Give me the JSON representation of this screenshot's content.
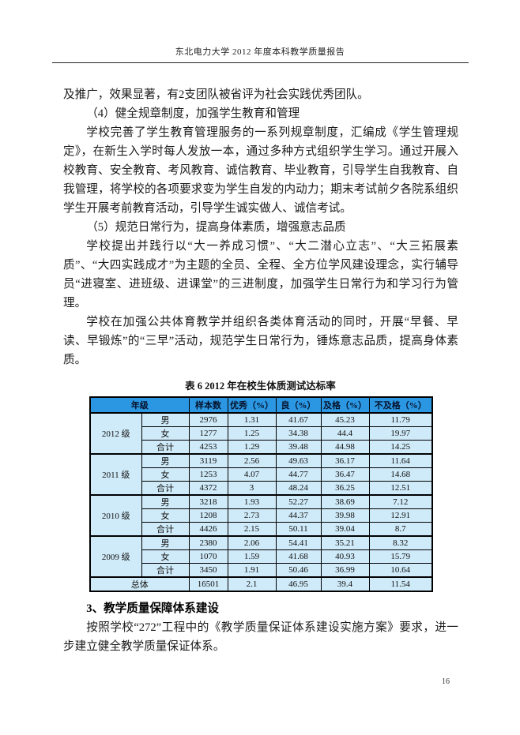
{
  "header": {
    "title": "东北电力大学 2012 年度本科教学质量报告"
  },
  "body": {
    "p_continuation": "及推广，效果显著，有2支团队被省评为社会实践优秀团队。",
    "heading_4": "（4）健全规章制度，加强学生教育和管理",
    "p_rules": "学校完善了学生教育管理服务的一系列规章制度，汇编成《学生管理规定》，在新生入学时每人发放一本，通过多种方式组织学生学习。通过开展入校教育、安全教育、考风教育、诚信教育、毕业教育，引导学生自我教育、自我管理，将学校的各项要求变为学生自发的内动力；期末考试前夕各院系组织学生开展考前教育活动，引导学生诚实做人、诚信考试。",
    "heading_5": "（5）规范日常行为，提高身体素质，增强意志品质",
    "p_style": "学校提出并践行以“大一养成习惯”、“大二潜心立志”、“大三拓展素质”、“大四实践成才”为主题的全员、全程、全方位学风建设理念，实行辅导员“进寝室、进班级、进课堂”的三进制度，加强学生日常行为和学习行为管理。",
    "p_sports": "学校在加强公共体育教学并组织各类体育活动的同时，开展“早餐、早读、早锻炼”的“三早”活动，规范学生日常行为，锤炼意志品质，提高身体素质。",
    "section_heading": "3、教学质量保障体系建设",
    "p_quality": "按照学校“272”工程中的《教学质量保证体系建设实施方案》要求，进一步建立健全教学质量保证体系。"
  },
  "table": {
    "caption": "表 6 2012 年在校生体质测试达标率",
    "columns": [
      "年级",
      "样本数",
      "优秀（%）",
      "良（%）",
      "及格（%）",
      "不及格（%）"
    ],
    "groups": [
      {
        "grade": "2012 级",
        "rows": [
          [
            "男",
            "2976",
            "1.31",
            "41.67",
            "45.23",
            "11.79"
          ],
          [
            "女",
            "1277",
            "1.25",
            "34.38",
            "44.4",
            "19.97"
          ],
          [
            "合计",
            "4253",
            "1.29",
            "39.48",
            "44.98",
            "14.25"
          ]
        ]
      },
      {
        "grade": "2011 级",
        "rows": [
          [
            "男",
            "3119",
            "2.56",
            "49.63",
            "36.17",
            "11.64"
          ],
          [
            "女",
            "1253",
            "4.07",
            "44.77",
            "36.47",
            "14.68"
          ],
          [
            "合计",
            "4372",
            "3",
            "48.24",
            "36.25",
            "12.51"
          ]
        ]
      },
      {
        "grade": "2010 级",
        "rows": [
          [
            "男",
            "3218",
            "1.93",
            "52.27",
            "38.69",
            "7.12"
          ],
          [
            "女",
            "1208",
            "2.73",
            "44.37",
            "39.98",
            "12.91"
          ],
          [
            "合计",
            "4426",
            "2.15",
            "50.11",
            "39.04",
            "8.7"
          ]
        ]
      },
      {
        "grade": "2009 级",
        "rows": [
          [
            "男",
            "2380",
            "2.06",
            "54.41",
            "35.21",
            "8.32"
          ],
          [
            "女",
            "1070",
            "1.59",
            "41.68",
            "40.93",
            "15.79"
          ],
          [
            "合计",
            "3450",
            "1.91",
            "50.46",
            "36.99",
            "10.64"
          ]
        ]
      }
    ],
    "total": {
      "label": "总体",
      "values": [
        "16501",
        "2.1",
        "46.95",
        "39.4",
        "11.54"
      ]
    }
  },
  "footer": {
    "page_number": "16"
  },
  "colors": {
    "table_header_bg": "#2b97e2",
    "table_cell_bg": "#cfeaf8",
    "border": "#000000"
  }
}
